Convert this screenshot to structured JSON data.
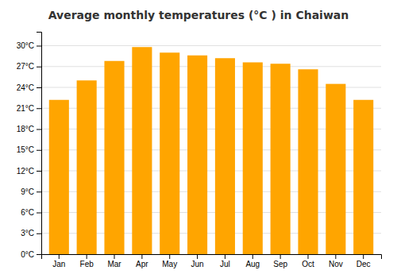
{
  "chart_data": {
    "type": "bar",
    "title": "Average monthly temperatures (°C ) in Chaiwan",
    "categories": [
      "Jan",
      "Feb",
      "Mar",
      "Apr",
      "May",
      "Jun",
      "Jul",
      "Aug",
      "Sep",
      "Oct",
      "Nov",
      "Dec"
    ],
    "values": [
      22.2,
      25.0,
      27.8,
      29.8,
      29.0,
      28.6,
      28.2,
      27.6,
      27.4,
      26.6,
      24.5,
      22.2
    ],
    "color": "#FFA500",
    "ylim": [
      0,
      32
    ],
    "yticks": [
      {
        "value": 0,
        "label": "0°C"
      },
      {
        "value": 3,
        "label": "3°C"
      },
      {
        "value": 6,
        "label": "6°C"
      },
      {
        "value": 9,
        "label": "9°C"
      },
      {
        "value": 12,
        "label": "12°C"
      },
      {
        "value": 15,
        "label": "15°C"
      },
      {
        "value": 18,
        "label": "18°C"
      },
      {
        "value": 21,
        "label": "21°C"
      },
      {
        "value": 24,
        "label": "24°C"
      },
      {
        "value": 27,
        "label": "27°C"
      },
      {
        "value": 30,
        "label": "30°C"
      }
    ],
    "grid": true
  }
}
